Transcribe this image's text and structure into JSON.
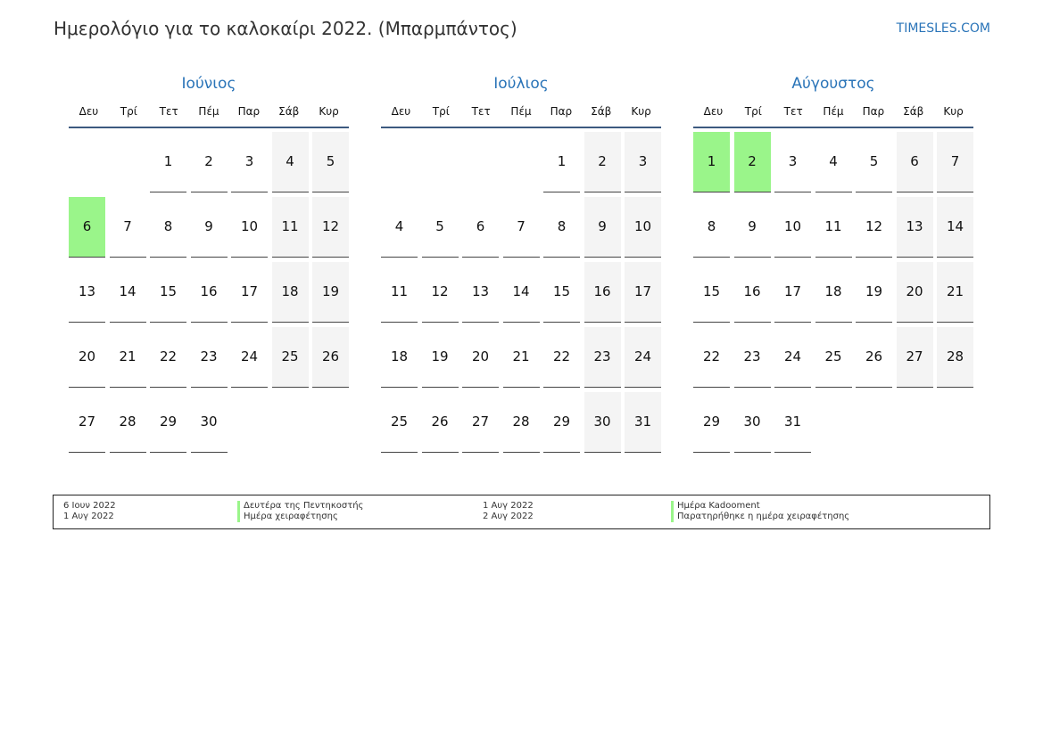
{
  "title": "Ημερολόγιο για το καλοκαίρι 2022. (Μπαρμπάντος)",
  "brand": "TIMESLES.COM",
  "weekdays": [
    "Δευ",
    "Τρί",
    "Τετ",
    "Πέμ",
    "Παρ",
    "Σάβ",
    "Κυρ"
  ],
  "colors": {
    "accent": "#2a74b8",
    "holiday": "#9af58a",
    "weekend": "#f4f4f4"
  },
  "months": [
    {
      "name": "Ιούνιος",
      "first_weekday": 3,
      "days": 30,
      "holidays": [
        6
      ]
    },
    {
      "name": "Ιούλιος",
      "first_weekday": 5,
      "days": 31,
      "holidays": []
    },
    {
      "name": "Αύγουστος",
      "first_weekday": 1,
      "days": 31,
      "holidays": [
        1,
        2
      ]
    }
  ],
  "legend": [
    {
      "dates": [
        "6 Ιουν 2022",
        "1 Αυγ 2022"
      ],
      "names": [
        "Δευτέρα της Πεντηκοστής",
        "Ημέρα χειραφέτησης"
      ]
    },
    {
      "dates": [
        "1 Αυγ 2022",
        "2 Αυγ 2022"
      ],
      "names": [
        "Ημέρα Kadooment",
        "Παρατηρήθηκε η ημέρα χειραφέτησης"
      ]
    }
  ]
}
